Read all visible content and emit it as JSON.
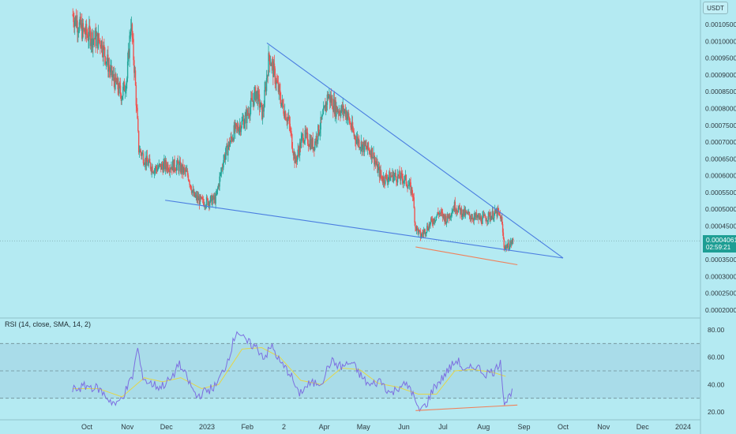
{
  "currency": "USDT",
  "price_badge": {
    "value": "0.0004061",
    "countdown": "02:59:21"
  },
  "rsi_indicator": {
    "title": "RSI (14, close, SMA, 14, 2)"
  },
  "colors": {
    "background": "#b4eaf2",
    "candle_up": "#26a69a",
    "candle_down": "#ef5350",
    "trendline": "#4a7de0",
    "divergence_line": "#f0805a",
    "rsi_line": "#7d6fe0",
    "rsi_sma": "#e3d64a",
    "rsi_band": "#a6d8e6"
  },
  "chart_data": [
    {
      "type": "candlestick",
      "title": "",
      "x_axis": {
        "tick_labels": [
          "Oct",
          "Nov",
          "Dec",
          "2023",
          "Feb",
          "2",
          "Apr",
          "May",
          "Jun",
          "Jul",
          "Aug",
          "Sep",
          "Oct",
          "Nov",
          "Dec",
          "2024"
        ],
        "tick_dates": [
          "2022-10-01",
          "2022-11-01",
          "2022-12-01",
          "2023-01-01",
          "2023-02-01",
          "2023-03-01",
          "2023-04-01",
          "2023-05-01",
          "2023-06-01",
          "2023-07-01",
          "2023-08-01",
          "2023-09-01",
          "2023-10-01",
          "2023-11-01",
          "2023-12-01",
          "2024-01-01"
        ]
      },
      "y_axis": {
        "scale": "linear",
        "range": [
          0.00019,
          0.00108
        ],
        "tick_labels": [
          "0.0010500",
          "0.0010000",
          "0.0009500",
          "0.0009000",
          "0.0008500",
          "0.0008000",
          "0.0007500",
          "0.0007000",
          "0.0006500",
          "0.0006000",
          "0.0005500",
          "0.0005000",
          "0.0004500",
          "0.0003500",
          "0.0003000",
          "0.0002500",
          "0.0002000"
        ],
        "tick_values": [
          0.00105,
          0.001,
          0.00095,
          0.0009,
          0.00085,
          0.0008,
          0.00075,
          0.0007,
          0.00065,
          0.0006,
          0.00055,
          0.0005,
          0.00045,
          0.00035,
          0.0003,
          0.00025,
          0.0002
        ]
      },
      "current_price": 0.0004061,
      "close_path": [
        {
          "date": "2022-09-20",
          "close": 0.00108
        },
        {
          "date": "2022-09-28",
          "close": 0.00103
        },
        {
          "date": "2022-10-06",
          "close": 0.00101
        },
        {
          "date": "2022-10-12",
          "close": 0.001
        },
        {
          "date": "2022-10-20",
          "close": 0.0009
        },
        {
          "date": "2022-10-28",
          "close": 0.00084
        },
        {
          "date": "2022-11-01",
          "close": 0.00089
        },
        {
          "date": "2022-11-04",
          "close": 0.00106
        },
        {
          "date": "2022-11-07",
          "close": 0.0009
        },
        {
          "date": "2022-11-10",
          "close": 0.00068
        },
        {
          "date": "2022-11-16",
          "close": 0.00064
        },
        {
          "date": "2022-11-22",
          "close": 0.00062
        },
        {
          "date": "2022-11-30",
          "close": 0.00063
        },
        {
          "date": "2022-12-10",
          "close": 0.00063
        },
        {
          "date": "2022-12-18",
          "close": 0.0006
        },
        {
          "date": "2022-12-22",
          "close": 0.00054
        },
        {
          "date": "2022-12-29",
          "close": 0.00052
        },
        {
          "date": "2023-01-08",
          "close": 0.00053
        },
        {
          "date": "2023-01-14",
          "close": 0.00065
        },
        {
          "date": "2023-01-22",
          "close": 0.00073
        },
        {
          "date": "2023-01-31",
          "close": 0.00077
        },
        {
          "date": "2023-02-08",
          "close": 0.00085
        },
        {
          "date": "2023-02-13",
          "close": 0.00078
        },
        {
          "date": "2023-02-18",
          "close": 0.00096
        },
        {
          "date": "2023-02-22",
          "close": 0.0009
        },
        {
          "date": "2023-02-28",
          "close": 0.00081
        },
        {
          "date": "2023-03-05",
          "close": 0.00076
        },
        {
          "date": "2023-03-10",
          "close": 0.00064
        },
        {
          "date": "2023-03-16",
          "close": 0.00072
        },
        {
          "date": "2023-03-24",
          "close": 0.00069
        },
        {
          "date": "2023-03-31",
          "close": 0.00077
        },
        {
          "date": "2023-04-04",
          "close": 0.00084
        },
        {
          "date": "2023-04-10",
          "close": 0.0008
        },
        {
          "date": "2023-04-18",
          "close": 0.00079
        },
        {
          "date": "2023-04-24",
          "close": 0.00072
        },
        {
          "date": "2023-04-30",
          "close": 0.00069
        },
        {
          "date": "2023-05-08",
          "close": 0.00067
        },
        {
          "date": "2023-05-12",
          "close": 0.00062
        },
        {
          "date": "2023-05-16",
          "close": 0.00059
        },
        {
          "date": "2023-05-24",
          "close": 0.0006
        },
        {
          "date": "2023-06-02",
          "close": 0.00059
        },
        {
          "date": "2023-06-08",
          "close": 0.00055
        },
        {
          "date": "2023-06-10",
          "close": 0.00045
        },
        {
          "date": "2023-06-14",
          "close": 0.00042
        },
        {
          "date": "2023-06-22",
          "close": 0.00046
        },
        {
          "date": "2023-06-28",
          "close": 0.00049
        },
        {
          "date": "2023-07-04",
          "close": 0.00047
        },
        {
          "date": "2023-07-10",
          "close": 0.00051
        },
        {
          "date": "2023-07-16",
          "close": 0.00049
        },
        {
          "date": "2023-07-22",
          "close": 0.00048
        },
        {
          "date": "2023-07-31",
          "close": 0.00047
        },
        {
          "date": "2023-08-06",
          "close": 0.00048
        },
        {
          "date": "2023-08-12",
          "close": 0.00049
        },
        {
          "date": "2023-08-15",
          "close": 0.00047
        },
        {
          "date": "2023-08-17",
          "close": 0.00039
        },
        {
          "date": "2023-08-20",
          "close": 0.00039
        },
        {
          "date": "2023-08-24",
          "close": 0.000406
        }
      ],
      "trendlines": [
        {
          "kind": "upper-resistance",
          "from": {
            "date": "2023-02-16",
            "price": 0.000995
          },
          "to": {
            "date": "2023-10-01",
            "price": 0.000355
          }
        },
        {
          "kind": "lower-support",
          "from": {
            "date": "2022-11-30",
            "price": 0.000527
          },
          "to": {
            "date": "2023-10-01",
            "price": 0.000355
          }
        },
        {
          "kind": "price-divergence",
          "from": {
            "date": "2023-06-10",
            "price": 0.000388
          },
          "to": {
            "date": "2023-08-27",
            "price": 0.000335
          }
        }
      ]
    },
    {
      "type": "line",
      "title": "RSI (14, close, SMA, 14, 2)",
      "y_axis": {
        "range": [
          20,
          85
        ],
        "tick_labels": [
          "80.00",
          "60.00",
          "40.00",
          "20.00"
        ],
        "tick_values": [
          80,
          60,
          40,
          20
        ],
        "band": [
          30,
          70
        ],
        "midline": 50
      },
      "rsi_path": [
        {
          "date": "2022-09-20",
          "value": 36
        },
        {
          "date": "2022-10-01",
          "value": 39
        },
        {
          "date": "2022-10-10",
          "value": 37
        },
        {
          "date": "2022-10-18",
          "value": 29
        },
        {
          "date": "2022-10-24",
          "value": 25
        },
        {
          "date": "2022-10-31",
          "value": 36
        },
        {
          "date": "2022-11-05",
          "value": 46
        },
        {
          "date": "2022-11-09",
          "value": 67
        },
        {
          "date": "2022-11-12",
          "value": 48
        },
        {
          "date": "2022-11-16",
          "value": 42
        },
        {
          "date": "2022-11-26",
          "value": 38
        },
        {
          "date": "2022-12-06",
          "value": 45
        },
        {
          "date": "2022-12-10",
          "value": 56
        },
        {
          "date": "2022-12-16",
          "value": 46
        },
        {
          "date": "2022-12-24",
          "value": 31
        },
        {
          "date": "2022-12-29",
          "value": 34
        },
        {
          "date": "2023-01-08",
          "value": 39
        },
        {
          "date": "2023-01-16",
          "value": 55
        },
        {
          "date": "2023-01-24",
          "value": 80
        },
        {
          "date": "2023-01-30",
          "value": 72
        },
        {
          "date": "2023-02-08",
          "value": 67
        },
        {
          "date": "2023-02-14",
          "value": 60
        },
        {
          "date": "2023-02-20",
          "value": 68
        },
        {
          "date": "2023-02-26",
          "value": 56
        },
        {
          "date": "2023-03-06",
          "value": 48
        },
        {
          "date": "2023-03-12",
          "value": 33
        },
        {
          "date": "2023-03-20",
          "value": 40
        },
        {
          "date": "2023-03-30",
          "value": 42
        },
        {
          "date": "2023-04-06",
          "value": 57
        },
        {
          "date": "2023-04-14",
          "value": 53
        },
        {
          "date": "2023-04-22",
          "value": 56
        },
        {
          "date": "2023-04-30",
          "value": 45
        },
        {
          "date": "2023-05-06",
          "value": 39
        },
        {
          "date": "2023-05-14",
          "value": 43
        },
        {
          "date": "2023-05-22",
          "value": 33
        },
        {
          "date": "2023-05-30",
          "value": 40
        },
        {
          "date": "2023-06-06",
          "value": 38
        },
        {
          "date": "2023-06-12",
          "value": 21
        },
        {
          "date": "2023-06-18",
          "value": 25
        },
        {
          "date": "2023-06-24",
          "value": 38
        },
        {
          "date": "2023-06-30",
          "value": 44
        },
        {
          "date": "2023-07-06",
          "value": 52
        },
        {
          "date": "2023-07-12",
          "value": 58
        },
        {
          "date": "2023-07-18",
          "value": 49
        },
        {
          "date": "2023-07-26",
          "value": 54
        },
        {
          "date": "2023-08-02",
          "value": 48
        },
        {
          "date": "2023-08-10",
          "value": 50
        },
        {
          "date": "2023-08-14",
          "value": 58
        },
        {
          "date": "2023-08-17",
          "value": 26
        },
        {
          "date": "2023-08-20",
          "value": 30
        },
        {
          "date": "2023-08-23",
          "value": 37
        }
      ],
      "sma_path": [
        {
          "date": "2022-09-20",
          "value": 37
        },
        {
          "date": "2022-10-10",
          "value": 37
        },
        {
          "date": "2022-10-28",
          "value": 31
        },
        {
          "date": "2022-11-14",
          "value": 45
        },
        {
          "date": "2022-11-28",
          "value": 42
        },
        {
          "date": "2022-12-12",
          "value": 45
        },
        {
          "date": "2022-12-28",
          "value": 37
        },
        {
          "date": "2023-01-10",
          "value": 40
        },
        {
          "date": "2023-01-28",
          "value": 66
        },
        {
          "date": "2023-02-12",
          "value": 67
        },
        {
          "date": "2023-02-26",
          "value": 60
        },
        {
          "date": "2023-03-14",
          "value": 43
        },
        {
          "date": "2023-03-30",
          "value": 40
        },
        {
          "date": "2023-04-14",
          "value": 52
        },
        {
          "date": "2023-04-28",
          "value": 51
        },
        {
          "date": "2023-05-12",
          "value": 41
        },
        {
          "date": "2023-05-28",
          "value": 38
        },
        {
          "date": "2023-06-12",
          "value": 33
        },
        {
          "date": "2023-06-26",
          "value": 33
        },
        {
          "date": "2023-07-10",
          "value": 50
        },
        {
          "date": "2023-07-24",
          "value": 51
        },
        {
          "date": "2023-08-08",
          "value": 49
        },
        {
          "date": "2023-08-18",
          "value": 46
        }
      ],
      "divergence_line": {
        "from": {
          "date": "2023-06-10",
          "value": 21
        },
        "to": {
          "date": "2023-08-27",
          "value": 25
        }
      }
    }
  ]
}
